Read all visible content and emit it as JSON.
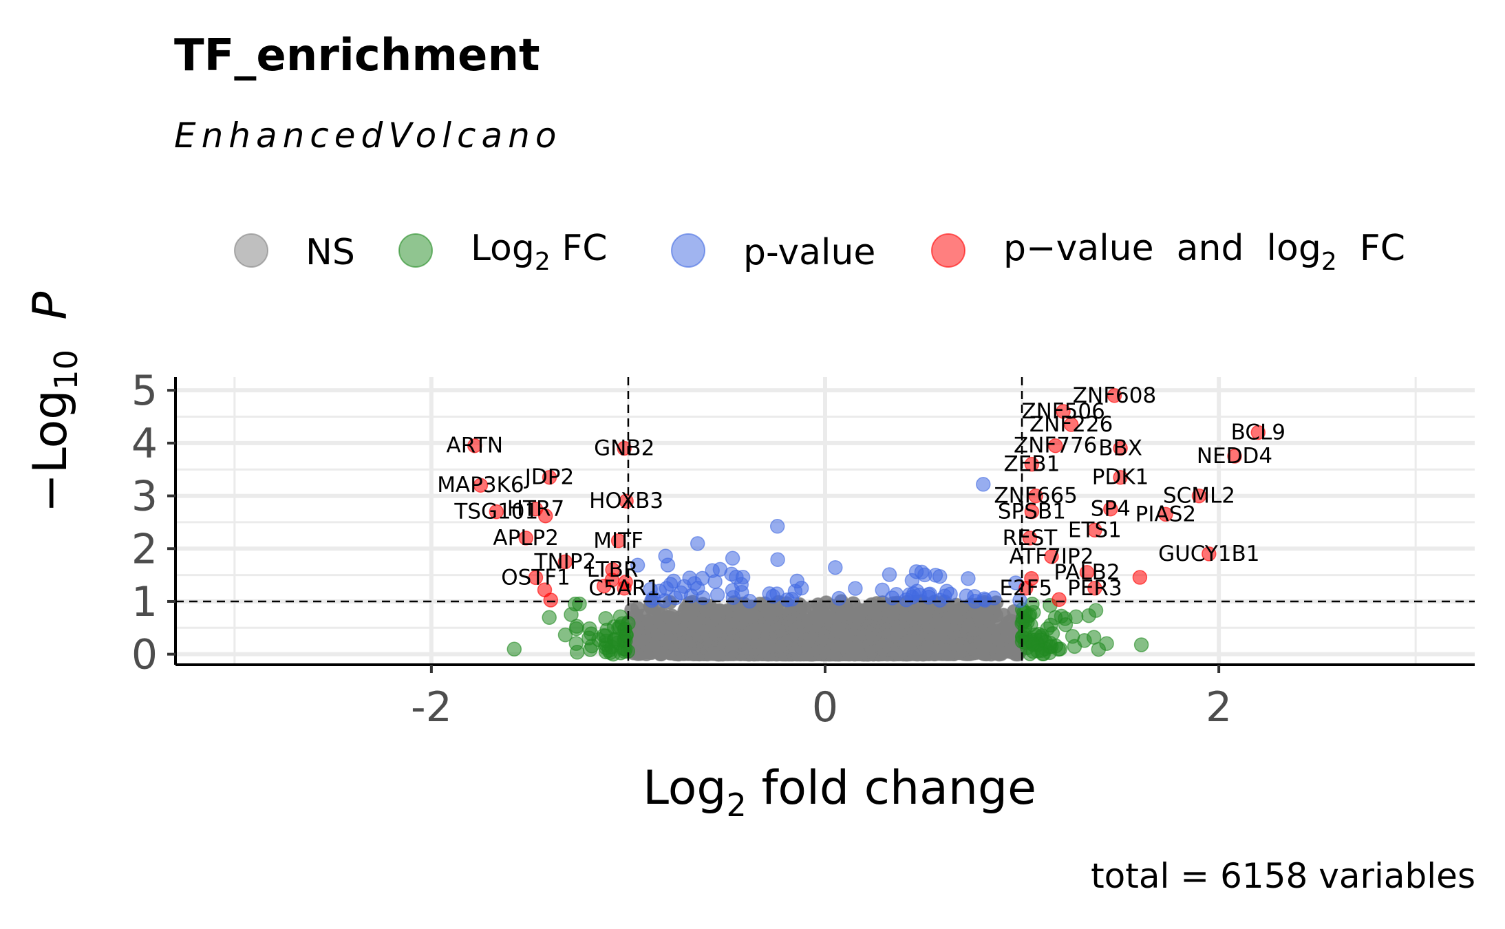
{
  "title": "TF_enrichment",
  "subtitle": "EnhancedVolcano",
  "caption": "total = 6158 variables",
  "legend": {
    "items": [
      {
        "key": "NS",
        "label": "NS",
        "color": "#808080"
      },
      {
        "key": "FC",
        "label_main": "Log",
        "label_sub": "2",
        "label_tail": " FC",
        "color": "#228b22"
      },
      {
        "key": "P",
        "label": "p-value",
        "color": "#4169e1"
      },
      {
        "key": "FC_P",
        "label_main": "p−value  and  log",
        "label_sub": "2",
        "label_tail": "  FC",
        "color": "#ff0000"
      }
    ]
  },
  "axes": {
    "xlabel_main": "Log",
    "xlabel_sub": "2",
    "xlabel_tail": " fold change",
    "ylabel_prefix": "−Log",
    "ylabel_sub": "10",
    "ylabel_var": "P"
  },
  "chart_data": {
    "type": "scatter",
    "title": "TF_enrichment",
    "subtitle": "EnhancedVolcano",
    "xlabel": "Log2 fold change",
    "ylabel": "-Log10 P",
    "xlim": [
      -3.3,
      3.3
    ],
    "ylim": [
      0,
      5
    ],
    "x_ticks": [
      -2,
      0,
      2
    ],
    "x_tick_labels": [
      "-2",
      "0",
      "2"
    ],
    "y_ticks": [
      0,
      1,
      2,
      3,
      4,
      5
    ],
    "y_tick_labels": [
      "0",
      "1",
      "2",
      "3",
      "4",
      "5"
    ],
    "fc_cutoff": 1,
    "p_cutoff_neglog10": 1,
    "grid": true,
    "legend_position": "top",
    "total_variables": 6158,
    "categories": {
      "NS": "#808080",
      "Log2 FC": "#228b22",
      "p-value": "#4169e1",
      "p-value and log2 FC": "#ff0000"
    },
    "labeled_points": [
      {
        "label": "ZNF608",
        "x": 1.47,
        "y": 4.9
      },
      {
        "label": "ZNF506",
        "x": 1.21,
        "y": 4.6
      },
      {
        "label": "ZNF226",
        "x": 1.25,
        "y": 4.35
      },
      {
        "label": "BCL9",
        "x": 2.2,
        "y": 4.2
      },
      {
        "label": "NEDD4",
        "x": 2.08,
        "y": 3.75
      },
      {
        "label": "ZNF776",
        "x": 1.17,
        "y": 3.95
      },
      {
        "label": "BBX",
        "x": 1.5,
        "y": 3.9
      },
      {
        "label": "ZEB1",
        "x": 1.05,
        "y": 3.6
      },
      {
        "label": "PDK1",
        "x": 1.5,
        "y": 3.35
      },
      {
        "label": "SCML2",
        "x": 1.9,
        "y": 3.0
      },
      {
        "label": "ZNF665",
        "x": 1.07,
        "y": 3.0
      },
      {
        "label": "SPSB1",
        "x": 1.05,
        "y": 2.7
      },
      {
        "label": "SP4",
        "x": 1.45,
        "y": 2.75
      },
      {
        "label": "PIAS2",
        "x": 1.73,
        "y": 2.65
      },
      {
        "label": "ETS1",
        "x": 1.37,
        "y": 2.35
      },
      {
        "label": "REST",
        "x": 1.04,
        "y": 2.2
      },
      {
        "label": "GUCY1B1",
        "x": 1.95,
        "y": 1.9
      },
      {
        "label": "ATF7IP2",
        "x": 1.15,
        "y": 1.85
      },
      {
        "label": "PALB2",
        "x": 1.33,
        "y": 1.55
      },
      {
        "label": "E2F5",
        "x": 1.02,
        "y": 1.25
      },
      {
        "label": "PER3",
        "x": 1.37,
        "y": 1.25
      },
      {
        "label": "ARTN",
        "x": -1.78,
        "y": 3.95
      },
      {
        "label": "GNB2",
        "x": -1.02,
        "y": 3.9
      },
      {
        "label": "MAP3K6",
        "x": -1.75,
        "y": 3.2
      },
      {
        "label": "JDP2",
        "x": -1.4,
        "y": 3.35
      },
      {
        "label": "HOXB3",
        "x": -1.01,
        "y": 2.9
      },
      {
        "label": "TSG101",
        "x": -1.67,
        "y": 2.7
      },
      {
        "label": "HTR7",
        "x": -1.47,
        "y": 2.75
      },
      {
        "label": "APLP2",
        "x": -1.52,
        "y": 2.2
      },
      {
        "label": "MITF",
        "x": -1.05,
        "y": 2.15
      },
      {
        "label": "TNIP2",
        "x": -1.32,
        "y": 1.75
      },
      {
        "label": "LTBR",
        "x": -1.08,
        "y": 1.6
      },
      {
        "label": "OSTF1",
        "x": -1.47,
        "y": 1.45
      },
      {
        "label": "C5AR1",
        "x": -1.02,
        "y": 1.25
      }
    ]
  }
}
